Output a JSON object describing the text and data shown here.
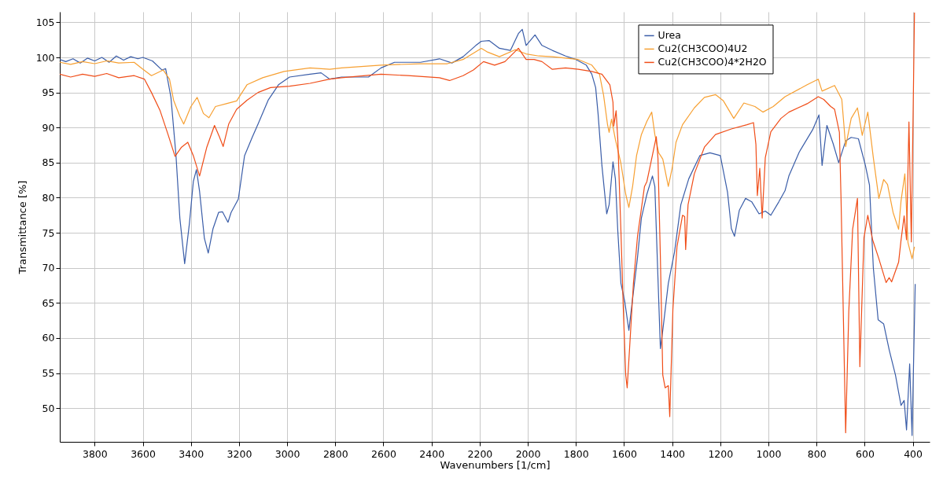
{
  "chart_data": {
    "type": "line",
    "xlabel": "Wavenumbers [1/cm]",
    "ylabel": "Transmittance [%]",
    "xlim": [
      3945,
      330
    ],
    "ylim": [
      45.2,
      106.5
    ],
    "xticks": [
      3800,
      3600,
      3400,
      3200,
      3000,
      2800,
      2600,
      2400,
      2200,
      2000,
      1800,
      1600,
      1400,
      1200,
      1000,
      800,
      600,
      400
    ],
    "yticks": [
      50,
      55,
      60,
      65,
      70,
      75,
      80,
      85,
      90,
      95,
      100,
      105
    ],
    "grid": true,
    "legend": "top right",
    "line_style": "solid",
    "marker": "none",
    "series": [
      {
        "name": "Urea",
        "color": "#3a5da8",
        "x": [
          3945,
          3920,
          3890,
          3860,
          3830,
          3800,
          3770,
          3740,
          3710,
          3680,
          3650,
          3620,
          3600,
          3560,
          3520,
          3505,
          3483,
          3462,
          3446,
          3426,
          3406,
          3390,
          3377,
          3364,
          3344,
          3328,
          3308,
          3285,
          3269,
          3246,
          3233,
          3203,
          3177,
          3144,
          3121,
          3079,
          3036,
          2990,
          2905,
          2859,
          2823,
          2774,
          2662,
          2610,
          2554,
          2446,
          2367,
          2315,
          2269,
          2216,
          2193,
          2161,
          2118,
          2072,
          2039,
          2023,
          2007,
          1970,
          1941,
          1898,
          1843,
          1800,
          1757,
          1734,
          1718,
          1708,
          1692,
          1672,
          1662,
          1646,
          1636,
          1626,
          1613,
          1597,
          1580,
          1544,
          1528,
          1505,
          1482,
          1472,
          1462,
          1449,
          1439,
          1416,
          1390,
          1364,
          1331,
          1285,
          1243,
          1200,
          1170,
          1154,
          1141,
          1121,
          1095,
          1069,
          1039,
          1013,
          990,
          957,
          931,
          915,
          872,
          816,
          790,
          777,
          757,
          731,
          708,
          679,
          656,
          626,
          597,
          580,
          564,
          544,
          521,
          498,
          472,
          449,
          436,
          426,
          413,
          403,
          390
        ],
        "values": [
          99.7,
          99.4,
          99.8,
          99.2,
          99.9,
          99.5,
          100,
          99.3,
          100.2,
          99.6,
          100.1,
          99.8,
          100,
          99.5,
          98.2,
          98.4,
          94.3,
          86,
          77.1,
          70.6,
          76.4,
          82.3,
          84,
          80.9,
          74.2,
          72.1,
          75.6,
          77.9,
          78,
          76.5,
          77.9,
          79.8,
          86,
          88.7,
          90.5,
          93.9,
          96.1,
          97.2,
          97.6,
          97.8,
          96.9,
          97.2,
          97.2,
          98.5,
          99.3,
          99.3,
          99.8,
          99.2,
          100.1,
          101.7,
          102.3,
          102.4,
          101.3,
          101,
          103.4,
          104,
          101.7,
          103.2,
          101.7,
          101,
          100.2,
          99.7,
          98.9,
          97.6,
          95.7,
          92,
          84.6,
          77.7,
          79,
          85.1,
          82.7,
          75.3,
          67.8,
          65.2,
          61.1,
          71.5,
          77.1,
          80.5,
          83.1,
          81.6,
          71.5,
          58.5,
          61.1,
          67.8,
          72.3,
          79,
          82.7,
          86,
          86.4,
          86,
          80.8,
          75.6,
          74.5,
          78.2,
          79.9,
          79.4,
          77.7,
          78.1,
          77.5,
          79.4,
          81,
          83.1,
          86.5,
          89.7,
          91.8,
          84.6,
          90.3,
          87.7,
          85,
          88.1,
          88.6,
          88.4,
          84.6,
          81.8,
          70,
          62.6,
          62,
          58.3,
          54.7,
          50.4,
          51.1,
          46.9,
          56.3,
          46.1,
          67.7
        ]
      },
      {
        "name": "Cu2(CH3COO)4U2",
        "color": "#f7a032",
        "x": [
          3945,
          3900,
          3850,
          3800,
          3750,
          3700,
          3636,
          3603,
          3564,
          3515,
          3489,
          3472,
          3446,
          3430,
          3400,
          3374,
          3348,
          3325,
          3298,
          3253,
          3210,
          3167,
          3102,
          3013,
          2905,
          2823,
          2774,
          2610,
          2446,
          2334,
          2269,
          2193,
          2170,
          2118,
          2052,
          2007,
          1954,
          1898,
          1790,
          1734,
          1711,
          1702,
          1685,
          1669,
          1662,
          1652,
          1636,
          1613,
          1593,
          1580,
          1564,
          1548,
          1528,
          1505,
          1485,
          1472,
          1456,
          1439,
          1416,
          1400,
          1384,
          1357,
          1308,
          1266,
          1220,
          1187,
          1144,
          1102,
          1056,
          1023,
          980,
          931,
          839,
          793,
          777,
          725,
          695,
          679,
          656,
          630,
          610,
          587,
          564,
          541,
          521,
          505,
          482,
          459,
          449,
          433,
          420,
          403,
          393
        ],
        "values": [
          99.3,
          99,
          99.4,
          99.1,
          99.5,
          99.2,
          99.3,
          98.4,
          97.4,
          98.2,
          96.9,
          93.9,
          91.6,
          90.5,
          93,
          94.3,
          92,
          91.4,
          93,
          93.4,
          93.8,
          96.1,
          97.1,
          98,
          98.5,
          98.3,
          98.5,
          98.9,
          99.1,
          99.1,
          99.7,
          101.3,
          100.8,
          100.1,
          101.1,
          100.5,
          100.2,
          100.1,
          99.7,
          98.9,
          97.9,
          97.6,
          94.6,
          90.5,
          89.3,
          91.2,
          88.3,
          84.9,
          80.5,
          78.6,
          81.7,
          86,
          89,
          90.9,
          92.2,
          89,
          86.4,
          85.5,
          81.6,
          84.2,
          87.9,
          90.4,
          92.8,
          94.3,
          94.7,
          93.8,
          91.3,
          93.5,
          93,
          92.2,
          93,
          94.4,
          96.1,
          96.9,
          95.2,
          96,
          94,
          87.3,
          91.3,
          92.8,
          88.9,
          92.2,
          85.7,
          79.9,
          82.6,
          81.9,
          77.9,
          75.5,
          79.5,
          83.4,
          73.6,
          71.3,
          73
        ]
      },
      {
        "name": "Cu2(CH3COO)4*2H2O",
        "color": "#f04d18",
        "x": [
          3945,
          3900,
          3850,
          3800,
          3750,
          3700,
          3636,
          3593,
          3564,
          3528,
          3495,
          3466,
          3439,
          3413,
          3390,
          3364,
          3334,
          3302,
          3282,
          3266,
          3243,
          3210,
          3167,
          3121,
          3069,
          2990,
          2905,
          2823,
          2774,
          2610,
          2498,
          2367,
          2325,
          2269,
          2226,
          2184,
          2138,
          2095,
          2039,
          2007,
          1974,
          1941,
          1898,
          1843,
          1790,
          1734,
          1692,
          1659,
          1646,
          1643,
          1633,
          1626,
          1613,
          1603,
          1593,
          1587,
          1577,
          1561,
          1544,
          1515,
          1505,
          1489,
          1466,
          1459,
          1449,
          1439,
          1429,
          1416,
          1410,
          1397,
          1380,
          1357,
          1348,
          1344,
          1334,
          1308,
          1266,
          1220,
          1154,
          1089,
          1062,
          1052,
          1046,
          1036,
          1026,
          1013,
          990,
          948,
          915,
          839,
          793,
          770,
          741,
          725,
          705,
          698,
          689,
          679,
          666,
          650,
          630,
          620,
          603,
          587,
          567,
          541,
          511,
          498,
          488,
          459,
          449,
          436,
          426,
          416,
          406,
          393
        ],
        "values": [
          97.6,
          97.2,
          97.6,
          97.3,
          97.7,
          97.1,
          97.4,
          96.9,
          95,
          92.4,
          89,
          85.9,
          87.2,
          87.9,
          86,
          83.1,
          87.2,
          90.3,
          88.7,
          87.3,
          90.5,
          92.6,
          93.9,
          95,
          95.7,
          95.9,
          96.3,
          96.9,
          97.1,
          97.6,
          97.4,
          97.1,
          96.7,
          97.4,
          98.2,
          99.4,
          98.9,
          99.4,
          101.3,
          99.7,
          99.7,
          99.4,
          98.3,
          98.5,
          98.3,
          98,
          97.6,
          96.1,
          93.6,
          90.2,
          92.4,
          88.3,
          75.3,
          64.1,
          54.7,
          52.9,
          58.5,
          67.8,
          74.5,
          81.6,
          82.3,
          84.9,
          88.7,
          85.6,
          71.5,
          54.7,
          52.9,
          53.2,
          48.8,
          64.1,
          73,
          77.5,
          77.3,
          72.6,
          79,
          83.4,
          87.2,
          89,
          89.8,
          90.4,
          90.7,
          87.6,
          80.3,
          84.2,
          77.1,
          85.7,
          89.4,
          91.3,
          92.2,
          93.4,
          94.4,
          94,
          93,
          92.6,
          89.3,
          79.5,
          63.8,
          46.5,
          63.8,
          75.5,
          79.9,
          55.9,
          74.3,
          77.5,
          74,
          71.3,
          67.9,
          68.6,
          68,
          70.8,
          73.9,
          77.4,
          74,
          90.8,
          73.7,
          106.4
        ]
      }
    ]
  }
}
